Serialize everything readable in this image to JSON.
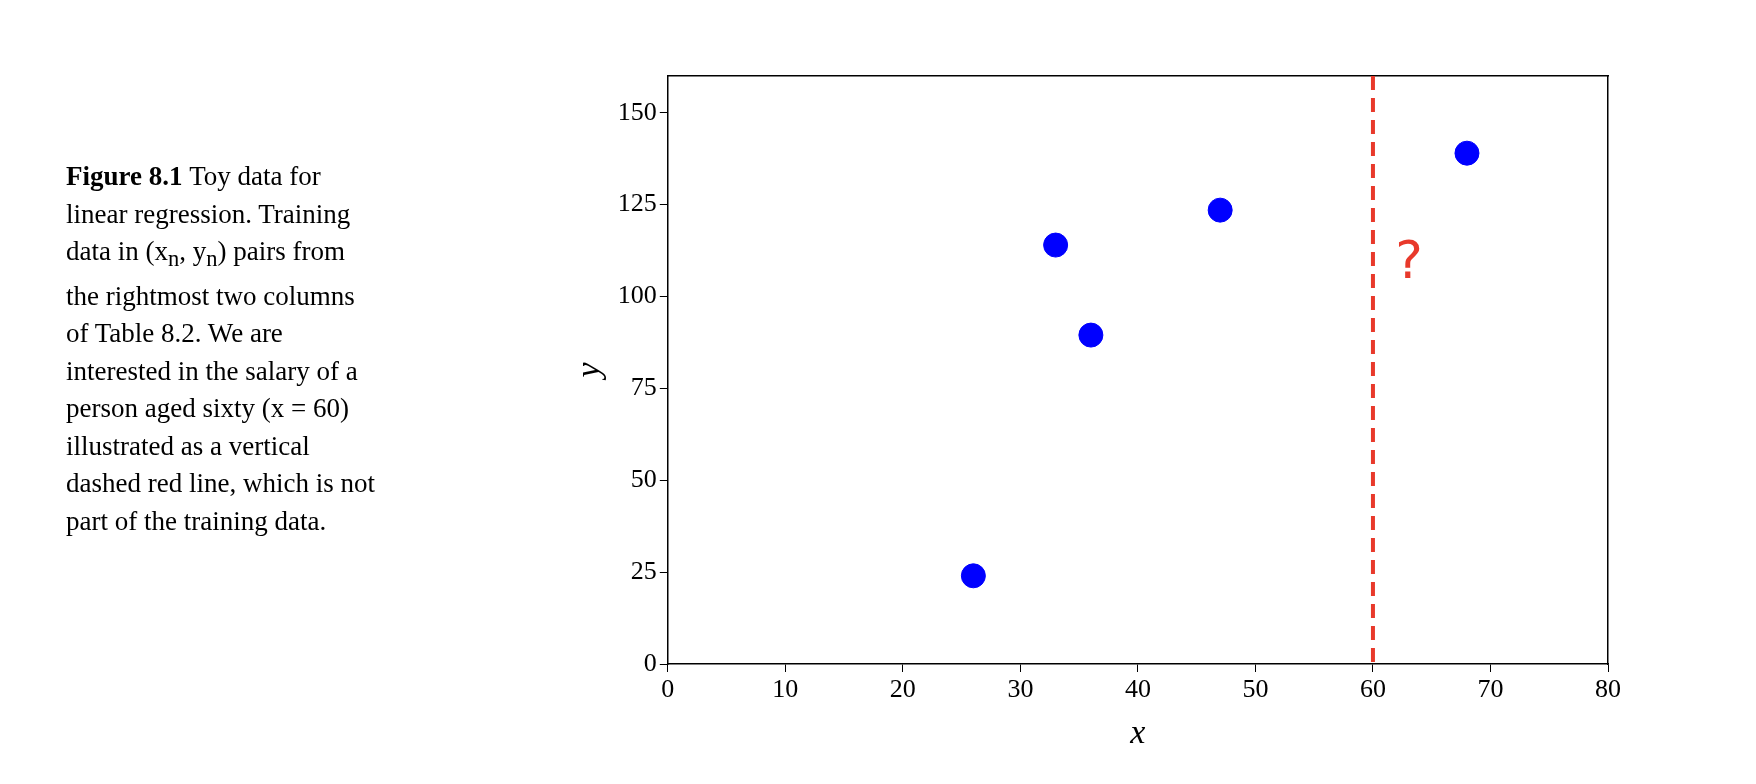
{
  "chart_data": {
    "type": "scatter",
    "xlabel": "x",
    "ylabel": "y",
    "annotations": [
      "Figure 8.1",
      "Toy data for linear regression. Training data in (x$_{n}$, y$_{n}$) pairs from the rightmost two columns of Table 8.2. We are interested in the salary of a person aged sixty (x = 60) illustrated as a vertical dashed red line, which is not part of the training data.",
      "?"
    ],
    "series": [
      {
        "color": "#0000ff",
        "x": [
          26,
          33,
          36,
          47,
          68
        ],
        "values": [
          24,
          114,
          89.5,
          123.5,
          139
        ]
      }
    ],
    "xlim": [
      0,
      80
    ],
    "xticks": [
      0,
      10,
      20,
      30,
      40,
      50,
      60,
      70,
      80
    ],
    "ylim": [
      0,
      160
    ],
    "yticks": [
      0,
      25,
      50,
      75,
      100,
      125,
      150
    ],
    "ref_lines": [
      {
        "axis": "x",
        "value": 60,
        "color": "#e8392b",
        "line_style": "dashed"
      }
    ],
    "grid": false,
    "legend": false,
    "marker": "circle"
  }
}
